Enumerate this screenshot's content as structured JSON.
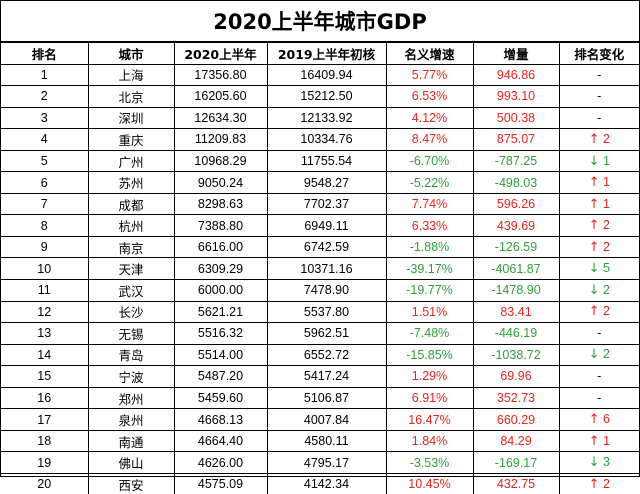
{
  "title": "2020上半年城市GDP",
  "colors": {
    "up": "#e8241e",
    "down": "#2f9e3a"
  },
  "headers": [
    "排名",
    "城市",
    "2020上半年",
    "2019上半年初核",
    "名义增速",
    "增量",
    "排名变化"
  ],
  "rows": [
    {
      "rank": "1",
      "city": "上海",
      "gdp2020": "17356.80",
      "gdp2019": "16409.94",
      "growth": "5.77%",
      "increase": "946.86",
      "change": "-",
      "dir": "none"
    },
    {
      "rank": "2",
      "city": "北京",
      "gdp2020": "16205.60",
      "gdp2019": "15212.50",
      "growth": "6.53%",
      "increase": "993.10",
      "change": "-",
      "dir": "none"
    },
    {
      "rank": "3",
      "city": "深圳",
      "gdp2020": "12634.30",
      "gdp2019": "12133.92",
      "growth": "4.12%",
      "increase": "500.38",
      "change": "-",
      "dir": "none"
    },
    {
      "rank": "4",
      "city": "重庆",
      "gdp2020": "11209.83",
      "gdp2019": "10334.76",
      "growth": "8.47%",
      "increase": "875.07",
      "change": "2",
      "dir": "up"
    },
    {
      "rank": "5",
      "city": "广州",
      "gdp2020": "10968.29",
      "gdp2019": "11755.54",
      "growth": "-6.70%",
      "increase": "-787.25",
      "change": "1",
      "dir": "down"
    },
    {
      "rank": "6",
      "city": "苏州",
      "gdp2020": "9050.24",
      "gdp2019": "9548.27",
      "growth": "-5.22%",
      "increase": "-498.03",
      "change": "1",
      "dir": "up"
    },
    {
      "rank": "7",
      "city": "成都",
      "gdp2020": "8298.63",
      "gdp2019": "7702.37",
      "growth": "7.74%",
      "increase": "596.26",
      "change": "1",
      "dir": "up"
    },
    {
      "rank": "8",
      "city": "杭州",
      "gdp2020": "7388.80",
      "gdp2019": "6949.11",
      "growth": "6.33%",
      "increase": "439.69",
      "change": "2",
      "dir": "up"
    },
    {
      "rank": "9",
      "city": "南京",
      "gdp2020": "6616.00",
      "gdp2019": "6742.59",
      "growth": "-1.88%",
      "increase": "-126.59",
      "change": "2",
      "dir": "up"
    },
    {
      "rank": "10",
      "city": "天津",
      "gdp2020": "6309.29",
      "gdp2019": "10371.16",
      "growth": "-39.17%",
      "increase": "-4061.87",
      "change": "5",
      "dir": "down"
    },
    {
      "rank": "11",
      "city": "武汉",
      "gdp2020": "6000.00",
      "gdp2019": "7478.90",
      "growth": "-19.77%",
      "increase": "-1478.90",
      "change": "2",
      "dir": "down"
    },
    {
      "rank": "12",
      "city": "长沙",
      "gdp2020": "5621.21",
      "gdp2019": "5537.80",
      "growth": "1.51%",
      "increase": "83.41",
      "change": "2",
      "dir": "up"
    },
    {
      "rank": "13",
      "city": "无锡",
      "gdp2020": "5516.32",
      "gdp2019": "5962.51",
      "growth": "-7.48%",
      "increase": "-446.19",
      "change": "-",
      "dir": "none"
    },
    {
      "rank": "14",
      "city": "青岛",
      "gdp2020": "5514.00",
      "gdp2019": "6552.72",
      "growth": "-15.85%",
      "increase": "-1038.72",
      "change": "2",
      "dir": "down"
    },
    {
      "rank": "15",
      "city": "宁波",
      "gdp2020": "5487.20",
      "gdp2019": "5417.24",
      "growth": "1.29%",
      "increase": "69.96",
      "change": "-",
      "dir": "none"
    },
    {
      "rank": "16",
      "city": "郑州",
      "gdp2020": "5459.60",
      "gdp2019": "5106.87",
      "growth": "6.91%",
      "increase": "352.73",
      "change": "-",
      "dir": "none"
    },
    {
      "rank": "17",
      "city": "泉州",
      "gdp2020": "4668.13",
      "gdp2019": "4007.84",
      "growth": "16.47%",
      "increase": "660.29",
      "change": "6",
      "dir": "up"
    },
    {
      "rank": "18",
      "city": "南通",
      "gdp2020": "4664.40",
      "gdp2019": "4580.11",
      "growth": "1.84%",
      "increase": "84.29",
      "change": "1",
      "dir": "up"
    },
    {
      "rank": "19",
      "city": "佛山",
      "gdp2020": "4626.00",
      "gdp2019": "4795.17",
      "growth": "-3.53%",
      "increase": "-169.17",
      "change": "3",
      "dir": "down"
    },
    {
      "rank": "20",
      "city": "西安",
      "gdp2020": "4575.09",
      "gdp2019": "4142.34",
      "growth": "10.45%",
      "increase": "432.75",
      "change": "2",
      "dir": "up"
    }
  ]
}
